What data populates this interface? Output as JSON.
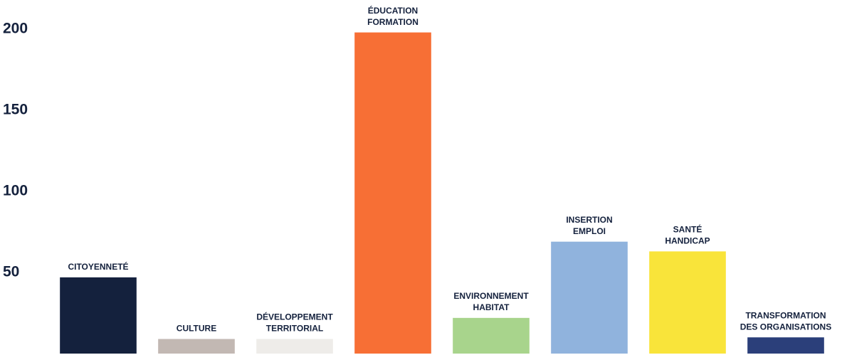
{
  "chart_data": {
    "type": "bar",
    "categories": [
      [
        "CITOYENNETÉ"
      ],
      [
        "CULTURE"
      ],
      [
        "DÉVELOPPEMENT",
        "TERRITORIAL"
      ],
      [
        "ÉDUCATION",
        "FORMATION"
      ],
      [
        "ENVIRONNEMENT",
        "HABITAT"
      ],
      [
        "INSERTION",
        "EMPLOI"
      ],
      [
        "SANTÉ",
        "HANDICAP"
      ],
      [
        "TRANSFORMATION",
        "DES ORGANISATIONS"
      ]
    ],
    "values": [
      47,
      9,
      9,
      198,
      22,
      69,
      63,
      10
    ],
    "colors": [
      "#14213d",
      "#c2b8b3",
      "#eeece9",
      "#f76f35",
      "#a8d48c",
      "#90b3dd",
      "#f9e43a",
      "#2b3f7a"
    ],
    "ylim": [
      0,
      218
    ],
    "yticks": [
      50,
      100,
      150,
      200
    ],
    "grid": false
  }
}
